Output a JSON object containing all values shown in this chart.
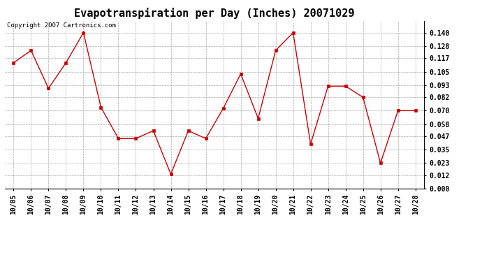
{
  "title": "Evapotranspiration per Day (Inches) 20071029",
  "copyright_text": "Copyright 2007 Cartronics.com",
  "dates": [
    "10/05",
    "10/06",
    "10/07",
    "10/08",
    "10/09",
    "10/10",
    "10/11",
    "10/12",
    "10/13",
    "10/14",
    "10/15",
    "10/16",
    "10/17",
    "10/18",
    "10/19",
    "10/20",
    "10/21",
    "10/22",
    "10/23",
    "10/24",
    "10/25",
    "10/26",
    "10/27",
    "10/28"
  ],
  "values": [
    0.113,
    0.124,
    0.09,
    0.113,
    0.14,
    0.073,
    0.045,
    0.045,
    0.052,
    0.013,
    0.052,
    0.045,
    0.072,
    0.103,
    0.063,
    0.124,
    0.14,
    0.04,
    0.092,
    0.092,
    0.082,
    0.023,
    0.07,
    0.07
  ],
  "line_color": "#cc0000",
  "marker": "s",
  "marker_size": 2.5,
  "ylim": [
    0.0,
    0.1505
  ],
  "yticks": [
    0.0,
    0.012,
    0.023,
    0.035,
    0.047,
    0.058,
    0.07,
    0.082,
    0.093,
    0.105,
    0.117,
    0.128,
    0.14
  ],
  "bg_color": "#ffffff",
  "grid_color": "#aaaaaa",
  "title_fontsize": 11,
  "tick_fontsize": 7,
  "copyright_fontsize": 6.5
}
